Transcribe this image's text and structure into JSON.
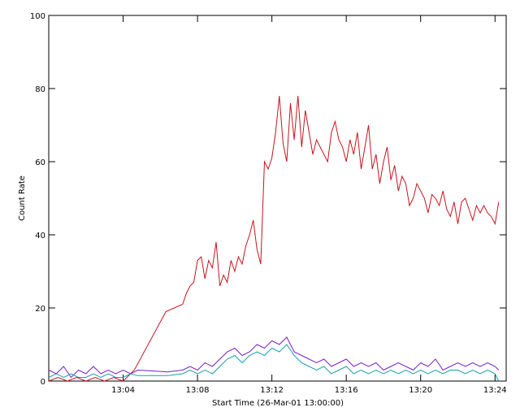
{
  "chart_data": {
    "type": "line",
    "xlabel": "Start Time (26-Mar-01 13:00:00)",
    "ylabel": "Count Rate",
    "x_unit": "minutes after 13:00:00",
    "xlim": [
      0,
      24.6
    ],
    "ylim": [
      0,
      100
    ],
    "x_ticks": [
      {
        "value": 4,
        "label": "13:04"
      },
      {
        "value": 8,
        "label": "13:08"
      },
      {
        "value": 12,
        "label": "13:12"
      },
      {
        "value": 16,
        "label": "13:16"
      },
      {
        "value": 20,
        "label": "13:20"
      },
      {
        "value": 24,
        "label": "13:24"
      }
    ],
    "y_ticks": [
      {
        "value": 0,
        "label": "0"
      },
      {
        "value": 20,
        "label": "20"
      },
      {
        "value": 40,
        "label": "40"
      },
      {
        "value": 60,
        "label": "60"
      },
      {
        "value": 80,
        "label": "80"
      },
      {
        "value": 100,
        "label": "100"
      }
    ],
    "grid": false,
    "legend": "none",
    "series": [
      {
        "color": "#c8141e",
        "x": [
          0,
          0.5,
          1.0,
          1.5,
          2.0,
          2.5,
          3.0,
          3.5,
          4.0,
          4.6,
          6.3,
          7.2,
          7.4,
          7.6,
          7.8,
          8.0,
          8.2,
          8.4,
          8.6,
          8.8,
          9.0,
          9.2,
          9.4,
          9.6,
          9.8,
          10.0,
          10.2,
          10.4,
          10.6,
          10.8,
          11.0,
          11.2,
          11.4,
          11.6,
          11.8,
          12.0,
          12.2,
          12.4,
          12.6,
          12.8,
          13.0,
          13.2,
          13.4,
          13.6,
          13.8,
          14.0,
          14.2,
          14.4,
          14.6,
          14.8,
          15.0,
          15.2,
          15.4,
          15.6,
          15.8,
          16.0,
          16.2,
          16.4,
          16.6,
          16.8,
          17.0,
          17.2,
          17.4,
          17.6,
          17.8,
          18.0,
          18.2,
          18.4,
          18.6,
          18.8,
          19.0,
          19.2,
          19.4,
          19.6,
          19.8,
          20.0,
          20.2,
          20.4,
          20.6,
          20.8,
          21.0,
          21.2,
          21.4,
          21.6,
          21.8,
          22.0,
          22.2,
          22.4,
          22.6,
          22.8,
          23.0,
          23.2,
          23.4,
          23.6,
          23.8,
          24.0,
          24.2
        ],
        "values": [
          0,
          1,
          0,
          1,
          0,
          1,
          0,
          1,
          0,
          3,
          19,
          21,
          24,
          26,
          27,
          33,
          34,
          28,
          33,
          31,
          38,
          26,
          29,
          27,
          33,
          30,
          34,
          32,
          37,
          40,
          44,
          36,
          32,
          60,
          58,
          61,
          68,
          78,
          65,
          60,
          76,
          66,
          78,
          64,
          74,
          68,
          62,
          66,
          64,
          62,
          60,
          68,
          71,
          66,
          64,
          60,
          66,
          62,
          68,
          58,
          64,
          70,
          58,
          62,
          54,
          60,
          64,
          55,
          59,
          52,
          56,
          54,
          48,
          50,
          54,
          52,
          50,
          46,
          51,
          50,
          48,
          52,
          47,
          45,
          49,
          43,
          49,
          50,
          47,
          44,
          48,
          46,
          48,
          46,
          45,
          43,
          49
        ]
      },
      {
        "color": "#7a1ec8",
        "x": [
          0,
          0.4,
          0.8,
          1.2,
          1.6,
          2.0,
          2.4,
          2.8,
          3.2,
          3.6,
          4.0,
          4.4,
          4.8,
          6.4,
          7.2,
          7.6,
          8.0,
          8.4,
          8.8,
          9.2,
          9.6,
          10.0,
          10.4,
          10.8,
          11.2,
          11.6,
          12.0,
          12.4,
          12.8,
          13.2,
          13.6,
          14.0,
          14.4,
          14.8,
          15.2,
          15.6,
          16.0,
          16.4,
          16.8,
          17.2,
          17.6,
          18.0,
          18.4,
          18.8,
          19.2,
          19.6,
          20.0,
          20.4,
          20.8,
          21.2,
          21.6,
          22.0,
          22.4,
          22.8,
          23.2,
          23.6,
          24.0,
          24.2
        ],
        "values": [
          3,
          2,
          4,
          1,
          3,
          2,
          4,
          2,
          3,
          2,
          3,
          2,
          3,
          2.5,
          3,
          4,
          3,
          5,
          4,
          6,
          8,
          9,
          7,
          8,
          10,
          9,
          11,
          10,
          12,
          8,
          7,
          6,
          5,
          6,
          4,
          5,
          6,
          4,
          5,
          4,
          5,
          3,
          4,
          5,
          4,
          3,
          5,
          4,
          6,
          3,
          4,
          5,
          4,
          5,
          4,
          5,
          4,
          3
        ]
      },
      {
        "color": "#1aa0a8",
        "x": [
          0,
          0.4,
          0.8,
          1.2,
          1.6,
          2.0,
          2.4,
          2.8,
          3.2,
          3.6,
          4.0,
          4.4,
          4.8,
          6.4,
          7.2,
          7.6,
          8.0,
          8.4,
          8.8,
          9.2,
          9.6,
          10.0,
          10.4,
          10.8,
          11.2,
          11.6,
          12.0,
          12.4,
          12.8,
          13.2,
          13.6,
          14.0,
          14.4,
          14.8,
          15.2,
          15.6,
          16.0,
          16.4,
          16.8,
          17.2,
          17.6,
          18.0,
          18.4,
          18.8,
          19.2,
          19.6,
          20.0,
          20.4,
          20.8,
          21.2,
          21.6,
          22.0,
          22.4,
          22.8,
          23.2,
          23.6,
          24.0,
          24.2
        ],
        "values": [
          1,
          2,
          1,
          2,
          1,
          1,
          2,
          1,
          2,
          1,
          1,
          2,
          1.5,
          1.5,
          2,
          3,
          2,
          3,
          2,
          4,
          6,
          7,
          5,
          7,
          8,
          7,
          9,
          8,
          10,
          7,
          5,
          4,
          3,
          4,
          2,
          3,
          4,
          2,
          3,
          2,
          3,
          2,
          3,
          2,
          3,
          2,
          3,
          2,
          3,
          2,
          3,
          3,
          2,
          3,
          2,
          3,
          2,
          0
        ]
      }
    ]
  }
}
